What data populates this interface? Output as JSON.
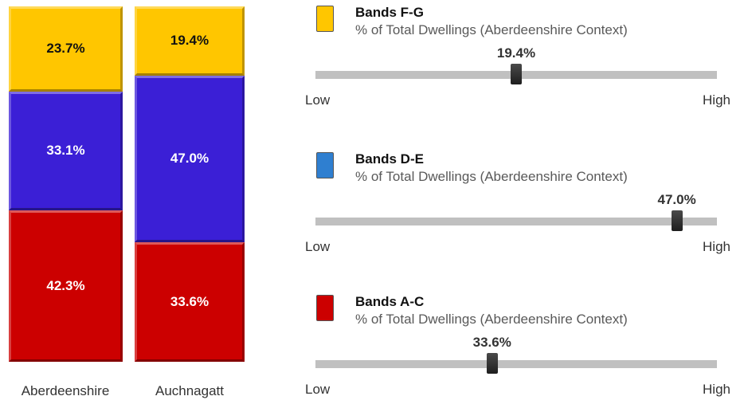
{
  "chart_data": [
    {
      "type": "bar",
      "stacked": true,
      "categories": [
        "Aberdeenshire",
        "Auchnagatt"
      ],
      "series": [
        {
          "key": "ac",
          "values": [
            42.3,
            33.6
          ],
          "labels": [
            "42.3%",
            "33.6%"
          ],
          "color": "#cc0000"
        },
        {
          "key": "de",
          "values": [
            33.1,
            47.0
          ],
          "labels": [
            "33.1%",
            "47.0%"
          ],
          "color": "#3b1fd6"
        },
        {
          "key": "fg",
          "values": [
            23.7,
            19.4
          ],
          "labels": [
            "23.7%",
            "19.4%"
          ],
          "color": "#ffc600"
        }
      ]
    },
    {
      "type": "bar",
      "subtype": "position-indicator",
      "panels": [
        {
          "title": "Bands F-G",
          "subtitle": "% of Total Dwellings (Aberdeenshire Context)",
          "value": 19.4,
          "value_label": "19.4%",
          "position": 0.5,
          "color": "#ffc600",
          "low_label": "Low",
          "high_label": "High"
        },
        {
          "title": "Bands D-E",
          "subtitle": "% of Total Dwellings (Aberdeenshire Context)",
          "value": 47.0,
          "value_label": "47.0%",
          "position": 0.9,
          "color": "#2f7fd0",
          "low_label": "Low",
          "high_label": "High"
        },
        {
          "title": "Bands A-C",
          "subtitle": "% of Total Dwellings (Aberdeenshire Context)",
          "value": 33.6,
          "value_label": "33.6%",
          "position": 0.44,
          "color": "#cc0000",
          "low_label": "Low",
          "high_label": "High"
        }
      ]
    }
  ]
}
